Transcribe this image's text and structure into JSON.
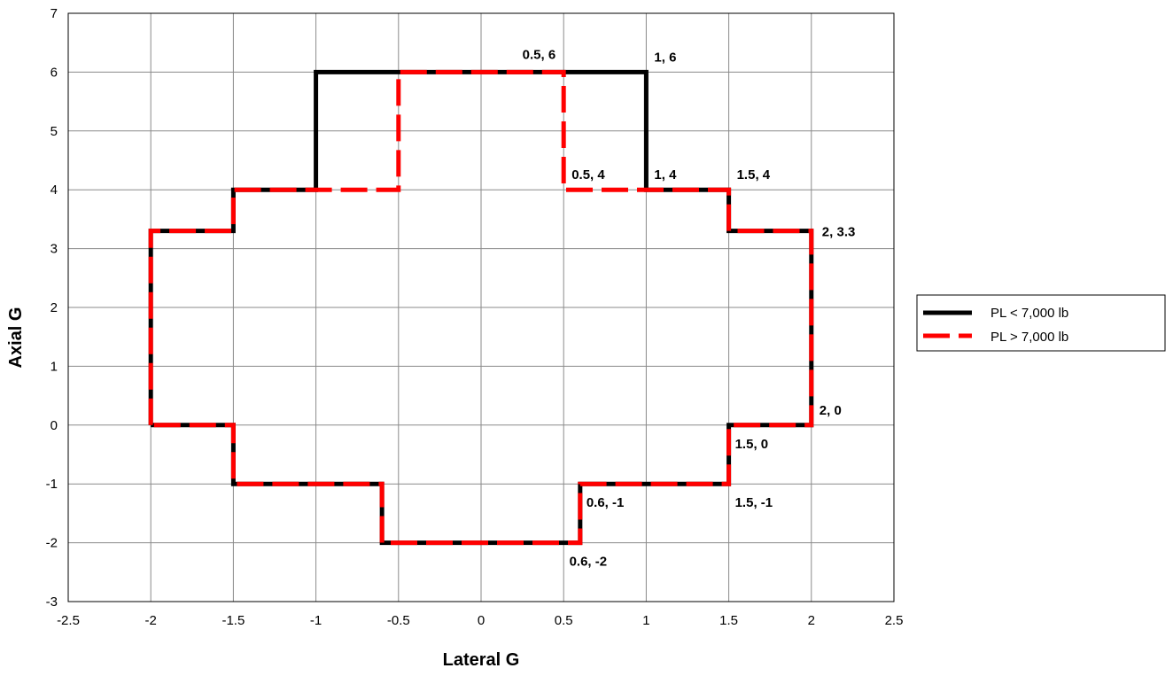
{
  "chart_data": {
    "type": "line",
    "title": "",
    "xlabel": "Lateral G",
    "ylabel": "Axial G",
    "xlim": [
      -2.5,
      2.5
    ],
    "ylim": [
      -3,
      7
    ],
    "x_ticks": [
      "-2.5",
      "-2",
      "-1.5",
      "-1",
      "-0.5",
      "0",
      "0.5",
      "1",
      "1.5",
      "2",
      "2.5"
    ],
    "y_ticks": [
      "-3",
      "-2",
      "-1",
      "0",
      "1",
      "2",
      "3",
      "4",
      "5",
      "6",
      "7"
    ],
    "grid": true,
    "legend_position": "right",
    "series": [
      {
        "name": "PL < 7,000 lb",
        "color": "#000000",
        "style": "solid",
        "points": [
          [
            -2,
            0
          ],
          [
            -2,
            3.3
          ],
          [
            -1.5,
            3.3
          ],
          [
            -1.5,
            4
          ],
          [
            -1,
            4
          ],
          [
            -1,
            6
          ],
          [
            1,
            6
          ],
          [
            1,
            4
          ],
          [
            1.5,
            4
          ],
          [
            1.5,
            3.3
          ],
          [
            2,
            3.3
          ],
          [
            2,
            0
          ],
          [
            1.5,
            0
          ],
          [
            1.5,
            -1
          ],
          [
            0.6,
            -1
          ],
          [
            0.6,
            -2
          ],
          [
            -0.6,
            -2
          ],
          [
            -0.6,
            -1
          ],
          [
            -1.5,
            -1
          ],
          [
            -1.5,
            0
          ],
          [
            -2,
            0
          ]
        ]
      },
      {
        "name": "PL > 7,000 lb",
        "color": "#ff0000",
        "style": "dashed",
        "points": [
          [
            -2,
            0
          ],
          [
            -2,
            3.3
          ],
          [
            -1.5,
            3.3
          ],
          [
            -1.5,
            4
          ],
          [
            -0.5,
            4
          ],
          [
            -0.5,
            6
          ],
          [
            0.5,
            6
          ],
          [
            0.5,
            4
          ],
          [
            1.5,
            4
          ],
          [
            1.5,
            3.3
          ],
          [
            2,
            3.3
          ],
          [
            2,
            0
          ],
          [
            1.5,
            0
          ],
          [
            1.5,
            -1
          ],
          [
            0.6,
            -1
          ],
          [
            0.6,
            -2
          ],
          [
            -0.6,
            -2
          ],
          [
            -0.6,
            -1
          ],
          [
            -1.5,
            -1
          ],
          [
            -1.5,
            0
          ],
          [
            -2,
            0
          ]
        ]
      }
    ],
    "annotations": [
      {
        "text": "0.5, 6",
        "x": 0.5,
        "y": 6,
        "pos": "above-left"
      },
      {
        "text": "1, 6",
        "x": 1,
        "y": 6,
        "pos": "above-right"
      },
      {
        "text": "0.5, 4",
        "x": 0.5,
        "y": 4,
        "pos": "above-right"
      },
      {
        "text": "1, 4",
        "x": 1,
        "y": 4,
        "pos": "above-right"
      },
      {
        "text": "1.5, 4",
        "x": 1.5,
        "y": 4,
        "pos": "above-right"
      },
      {
        "text": "2, 3.3",
        "x": 2,
        "y": 3.3,
        "pos": "right"
      },
      {
        "text": "2, 0",
        "x": 2,
        "y": 0,
        "pos": "above-right"
      },
      {
        "text": "1.5, 0",
        "x": 1.5,
        "y": 0,
        "pos": "below-right"
      },
      {
        "text": "1.5, -1",
        "x": 1.5,
        "y": -1,
        "pos": "below-right"
      },
      {
        "text": "0.6, -1",
        "x": 0.6,
        "y": -1,
        "pos": "below-right"
      },
      {
        "text": "0.6, -2",
        "x": 0.6,
        "y": -2,
        "pos": "below-left"
      }
    ]
  }
}
